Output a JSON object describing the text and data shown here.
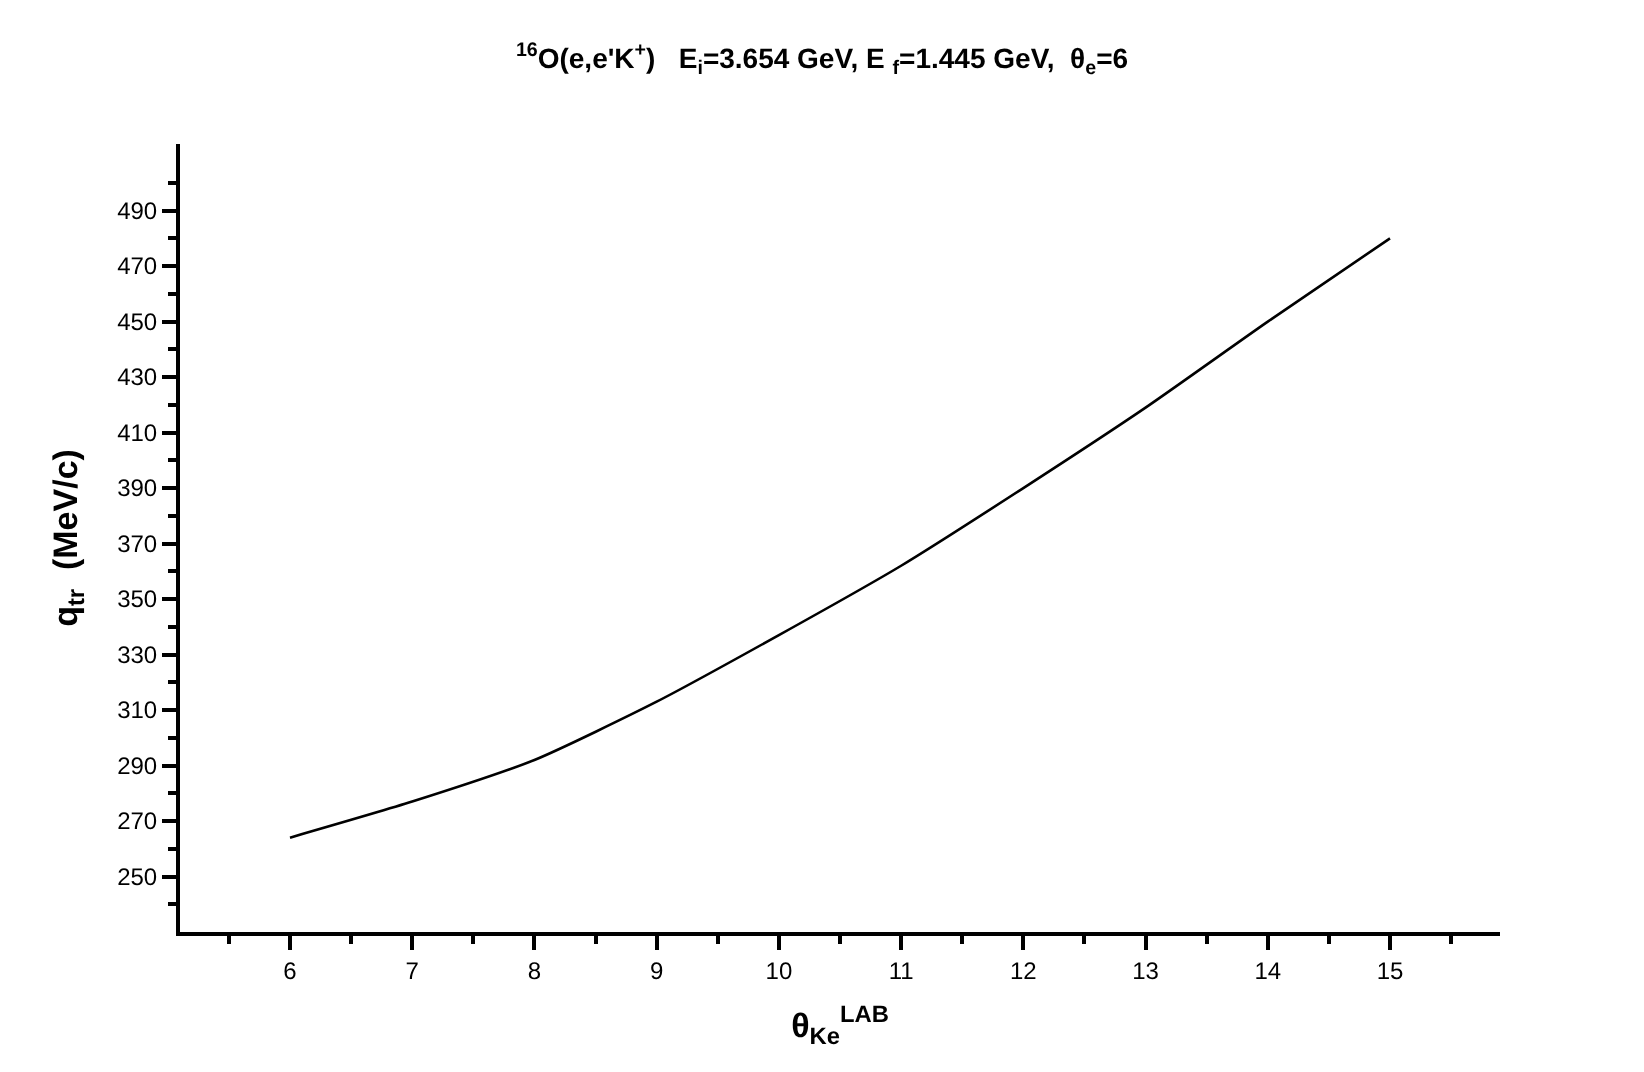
{
  "chart_data": {
    "type": "line",
    "title": "$^{16}$O(e,e'K$^{+}$)   E$_{i}$=3.654 GeV, E $_{f}$=1.445 GeV,  θ$_{e}$=6",
    "xlabel": "θ$_{Ke}$$^{LAB}$",
    "ylabel": "q$_{tr}$  (MeV/c)",
    "x": [
      6,
      7,
      8,
      9,
      10,
      11,
      12,
      13,
      14,
      15
    ],
    "series": [
      {
        "color": "#000000",
        "values": [
          264,
          277,
          292,
          313,
          337,
          362,
          390,
          419,
          450,
          480
        ]
      }
    ],
    "xlim": [
      5.1,
      15.9
    ],
    "xticks": [
      6,
      7,
      8,
      9,
      10,
      11,
      12,
      13,
      14,
      15
    ],
    "ylim": [
      230,
      514
    ],
    "yticks": [
      250,
      270,
      290,
      310,
      330,
      350,
      370,
      390,
      410,
      430,
      450,
      470,
      490
    ],
    "marker": "none",
    "line_style": "solid"
  }
}
